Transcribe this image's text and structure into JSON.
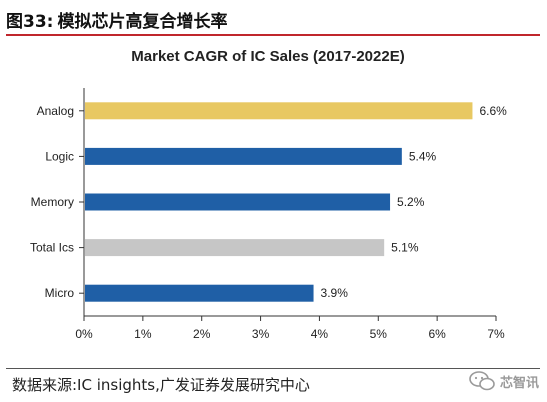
{
  "header": {
    "figure_number": "图33:",
    "figure_title": "模拟芯片高复合增长率"
  },
  "chart_data": {
    "type": "bar",
    "orientation": "horizontal",
    "title": "Market CAGR of IC Sales (2017-2022E)",
    "categories": [
      "Analog",
      "Logic",
      "Memory",
      "Total Ics",
      "Micro"
    ],
    "values": [
      6.6,
      5.4,
      5.2,
      5.1,
      3.9
    ],
    "value_labels": [
      "6.6%",
      "5.4%",
      "5.2%",
      "5.1%",
      "3.9%"
    ],
    "bar_colors": [
      "#e8c862",
      "#1f5fa6",
      "#1f5fa6",
      "#c6c6c6",
      "#1f5fa6"
    ],
    "xlim": [
      0,
      7
    ],
    "x_ticks": [
      0,
      1,
      2,
      3,
      4,
      5,
      6,
      7
    ],
    "x_tick_labels": [
      "0%",
      "1%",
      "2%",
      "3%",
      "4%",
      "5%",
      "6%",
      "7%"
    ],
    "xlabel": "",
    "ylabel": "",
    "grid": false,
    "legend": "none"
  },
  "footer": {
    "source": "数据来源:IC insights,广发证券发展研究中心",
    "watermark": "芯智讯",
    "watermark_icon": "wechat-icon"
  },
  "colors": {
    "header_rule": "#c0262c",
    "bar_primary": "#1f5fa6",
    "bar_highlight": "#e8c862",
    "bar_total": "#c6c6c6"
  }
}
